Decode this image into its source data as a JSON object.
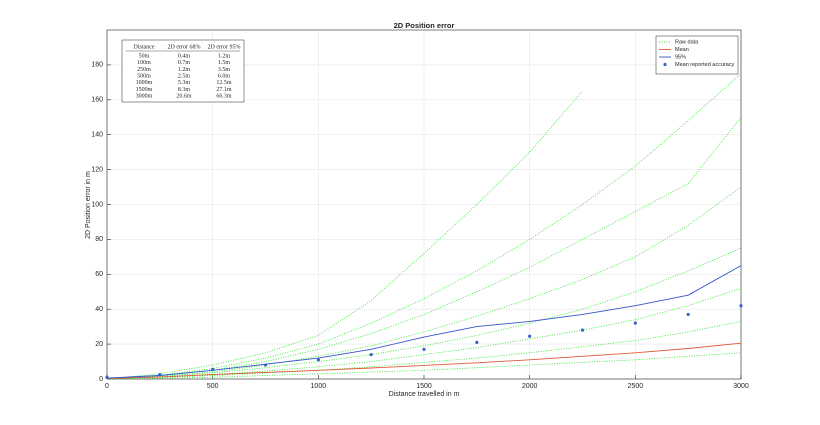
{
  "chart_data": {
    "type": "line",
    "title": "2D Position error",
    "x_label": "Distance travelled in m",
    "y_label": "2D Position error in m",
    "x": [
      0,
      250,
      500,
      750,
      1000,
      1250,
      1500,
      1750,
      2000,
      2250,
      2500,
      2750,
      3000
    ],
    "xlim": [
      0,
      3000
    ],
    "ylim": [
      0,
      200
    ],
    "xticks": [
      0,
      500,
      1000,
      1500,
      2000,
      2500,
      3000
    ],
    "yticks": [
      0,
      20,
      40,
      60,
      80,
      100,
      120,
      140,
      160,
      180
    ],
    "grid": true,
    "legend": "top-right",
    "series": [
      {
        "name": "Raw data",
        "color": "#22e622",
        "style": "dotted",
        "values": [
          0,
          3,
          8,
          15,
          25,
          45,
          72,
          100,
          130,
          165,
          null,
          null,
          null
        ]
      },
      {
        "name": null,
        "color": "#22e622",
        "style": "dotted",
        "values": [
          0,
          2,
          6,
          12,
          20,
          32,
          46,
          62,
          80,
          100,
          122,
          148,
          175
        ]
      },
      {
        "name": null,
        "color": "#22e622",
        "style": "dotted",
        "values": [
          0,
          2,
          5,
          10,
          17,
          26,
          37,
          50,
          64,
          80,
          96,
          112,
          150
        ]
      },
      {
        "name": null,
        "color": "#22e622",
        "style": "dotted",
        "values": [
          0,
          1.5,
          4,
          8,
          13,
          19,
          27,
          36,
          46,
          57,
          70,
          88,
          110
        ]
      },
      {
        "name": null,
        "color": "#22e622",
        "style": "dotted",
        "values": [
          0,
          1.5,
          3.5,
          6.5,
          10,
          14,
          19,
          25,
          32,
          40,
          50,
          62,
          75
        ]
      },
      {
        "name": null,
        "color": "#22e622",
        "style": "dotted",
        "values": [
          0,
          1,
          2.5,
          4.5,
          7,
          10,
          14,
          18,
          23,
          28,
          34,
          42,
          52
        ]
      },
      {
        "name": null,
        "color": "#22e622",
        "style": "dotted",
        "values": [
          0,
          1,
          2,
          3.5,
          5,
          7,
          9.5,
          12,
          15,
          18.5,
          22,
          27,
          33
        ]
      },
      {
        "name": null,
        "color": "#22e622",
        "style": "dotted",
        "values": [
          0,
          0.5,
          1,
          2,
          3,
          4,
          5,
          6.5,
          8,
          9.5,
          11,
          13,
          15
        ]
      },
      {
        "name": "Mean",
        "color": "#e05a3a",
        "style": "solid",
        "values": [
          0.3,
          1.2,
          2.5,
          3.8,
          5,
          6.3,
          7.8,
          9.3,
          11,
          13,
          15,
          17.5,
          20.5
        ]
      },
      {
        "name": "95%",
        "color": "#3355cc",
        "style": "solid",
        "values": [
          0.5,
          2,
          5,
          8.5,
          12,
          17,
          24,
          30,
          33,
          37,
          42,
          48,
          65
        ]
      },
      {
        "name": "Mean reported accuracy",
        "color": "#3a5fcd",
        "style": "markers",
        "values": [
          1,
          2.5,
          5.5,
          8,
          11,
          14,
          17,
          21,
          24.5,
          28,
          32,
          37,
          42
        ]
      }
    ],
    "inset_table": {
      "columns": [
        "Distance",
        "2D error 68%",
        "2D error 95%"
      ],
      "rows": [
        [
          "50m",
          "0.4m",
          "1.2m"
        ],
        [
          "100m",
          "0.7m",
          "1.5m"
        ],
        [
          "250m",
          "1.2m",
          "3.5m"
        ],
        [
          "500m",
          "2.5m",
          "6.0m"
        ],
        [
          "1000m",
          "5.3m",
          "12.5m"
        ],
        [
          "1500m",
          "8.3m",
          "27.1m"
        ],
        [
          "3000m",
          "20.6m",
          "66.3m"
        ]
      ]
    }
  }
}
